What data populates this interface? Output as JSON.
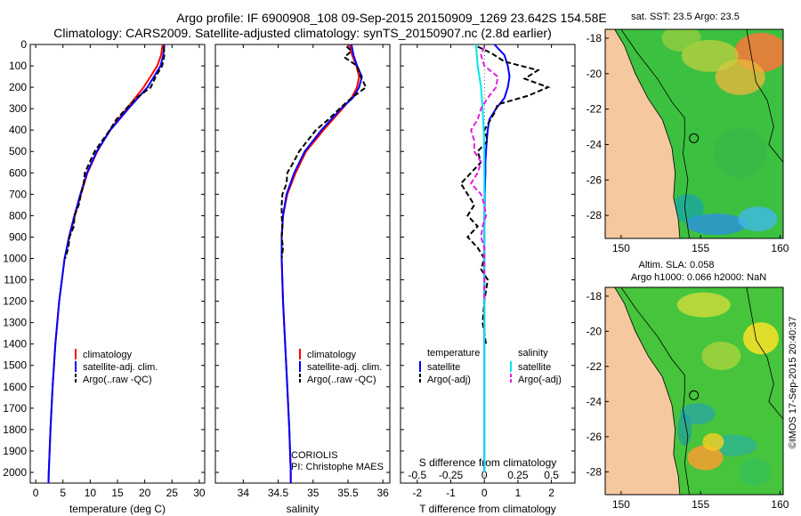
{
  "header": {
    "line1": "Argo profile: IF 6900908_108 09-Sep-2015 20150909_1269 23.642S 154.58E",
    "line2": "Climatology: CARS2009. Satellite-adjusted climatology: synTS_20150907.nc (2.8d earlier)"
  },
  "colors": {
    "climatology": "#ff0000",
    "satellite": "#0000ff",
    "argo": "#000000",
    "sat_s": "#00e5ee",
    "argo_s": "#e020e0",
    "land": "#f5c8a0"
  },
  "map_top": {
    "title": "sat. SST: 23.5 Argo: 23.5"
  },
  "map_bottom": {
    "title1": "Altim. SLA: 0.058",
    "title2": "Argo h1000: 0.066 h2000: NaN"
  },
  "footer": {
    "side_label": "©IMOS 17-Sep-2015 20:40:37"
  },
  "chart_data": [
    {
      "type": "line",
      "xlabel": "temperature (deg C)",
      "xlim": [
        -1,
        31
      ],
      "x_ticks": [
        0,
        5,
        10,
        15,
        20,
        25,
        30
      ],
      "ylim": [
        0,
        2050
      ],
      "y_ticks": [
        0,
        100,
        200,
        300,
        400,
        500,
        600,
        700,
        800,
        900,
        1000,
        1100,
        1200,
        1300,
        1400,
        1500,
        1600,
        1700,
        1800,
        1900,
        2000
      ],
      "legend": [
        "climatology",
        "satellite-adj. clim.",
        "Argo(..raw -QC)"
      ],
      "series": [
        {
          "name": "climatology",
          "depth": [
            0,
            50,
            100,
            200,
            300,
            400,
            500,
            600,
            700,
            800,
            900,
            1000,
            1200,
            1400,
            1600,
            1800,
            2000,
            2050
          ],
          "values": [
            23.3,
            23.0,
            22.3,
            19.8,
            16.7,
            13.6,
            11.3,
            9.5,
            8.3,
            7.2,
            6.2,
            5.3,
            4.3,
            3.6,
            3.1,
            2.7,
            2.4,
            2.35
          ]
        },
        {
          "name": "satellite-adj. clim.",
          "depth": [
            0,
            50,
            100,
            200,
            300,
            400,
            500,
            600,
            700,
            800,
            900,
            1000,
            1200,
            1400,
            1600,
            1800,
            2000,
            2050
          ],
          "values": [
            23.6,
            23.4,
            22.9,
            20.5,
            17.0,
            13.7,
            11.2,
            9.4,
            8.2,
            7.1,
            6.1,
            5.3,
            4.3,
            3.6,
            3.1,
            2.7,
            2.4,
            2.35
          ]
        },
        {
          "name": "Argo(..raw -QC)",
          "depth": [
            10,
            50,
            100,
            150,
            200,
            250,
            300,
            350,
            400,
            450,
            500,
            550,
            600,
            650,
            700,
            750,
            800,
            850,
            900,
            950,
            1000
          ],
          "values": [
            23.5,
            23.6,
            23.2,
            22.0,
            21.1,
            18.5,
            16.6,
            14.8,
            13.6,
            12.2,
            10.8,
            9.9,
            9.0,
            8.8,
            8.3,
            7.9,
            7.1,
            7.0,
            6.2,
            6.0,
            5.4
          ]
        }
      ]
    },
    {
      "type": "line",
      "xlabel": "salinity",
      "xlim": [
        33.6,
        36.1
      ],
      "x_ticks": [
        34,
        34.5,
        35,
        35.5,
        36
      ],
      "ylim": [
        0,
        2050
      ],
      "legend": [
        "climatology",
        "satellite-adj. clim.",
        "Argo(..raw -QC)"
      ],
      "annotation": [
        "CORIOLIS",
        "PI: Christophe MAES"
      ],
      "series": [
        {
          "name": "climatology",
          "depth": [
            0,
            50,
            100,
            150,
            200,
            250,
            300,
            400,
            500,
            600,
            700,
            800,
            900,
            1000,
            1200,
            1400,
            1600,
            1800,
            2000,
            2050
          ],
          "values": [
            35.52,
            35.56,
            35.62,
            35.66,
            35.63,
            35.55,
            35.42,
            35.15,
            34.9,
            34.75,
            34.63,
            34.57,
            34.55,
            34.55,
            34.57,
            34.6,
            34.63,
            34.66,
            34.68,
            34.68
          ]
        },
        {
          "name": "satellite-adj. clim.",
          "depth": [
            0,
            50,
            100,
            150,
            200,
            250,
            300,
            400,
            500,
            600,
            700,
            800,
            900,
            1000,
            1200,
            1400,
            1600,
            1800,
            2000,
            2050
          ],
          "values": [
            35.55,
            35.58,
            35.63,
            35.7,
            35.66,
            35.57,
            35.4,
            35.12,
            34.88,
            34.73,
            34.62,
            34.57,
            34.55,
            34.55,
            34.57,
            34.6,
            34.63,
            34.66,
            34.68,
            34.68
          ]
        },
        {
          "name": "Argo(..raw -QC)",
          "depth": [
            10,
            30,
            60,
            100,
            150,
            200,
            250,
            300,
            350,
            400,
            450,
            500,
            550,
            600,
            650,
            700,
            750,
            800,
            850,
            900,
            950,
            1000
          ],
          "values": [
            35.48,
            35.55,
            35.45,
            35.63,
            35.68,
            35.76,
            35.55,
            35.38,
            35.22,
            35.04,
            34.92,
            34.8,
            34.72,
            34.63,
            34.62,
            34.56,
            34.55,
            34.55,
            34.56,
            34.55,
            34.57,
            34.55
          ]
        }
      ]
    },
    {
      "type": "line",
      "xlabel": "T difference from climatology",
      "xlim": [
        -2.5,
        2.7
      ],
      "x_ticks": [
        -2,
        -1,
        0,
        1,
        2
      ],
      "top_label": "S difference from climatology",
      "top_ticks": [
        "-0.5",
        "-0.25",
        "0",
        "0.25",
        "0.5"
      ],
      "top_tick_positions": [
        -2,
        -1,
        0,
        1,
        2
      ],
      "ylim": [
        0,
        2050
      ],
      "legend": {
        "temperature": [
          "satellite",
          "Argo(-adj)"
        ],
        "salinity": [
          "satellite",
          "Argo(-adj)"
        ],
        "temperature_heading": "temperature",
        "salinity_heading": "salinity"
      },
      "series": [
        {
          "name": "satellite",
          "depth": [
            0,
            50,
            100,
            150,
            200,
            250,
            300,
            350,
            400,
            450,
            500,
            550,
            600,
            650,
            700,
            750,
            800,
            850,
            900,
            1000,
            1200,
            1500,
            2000
          ],
          "values": [
            0.3,
            0.6,
            0.7,
            0.75,
            0.7,
            0.6,
            0.35,
            0.15,
            0.1,
            0.07,
            0.05,
            0.03,
            0.03,
            0.02,
            0.01,
            0.01,
            0.0,
            0.0,
            0.0,
            0.0,
            0.0,
            0.0,
            0.0
          ]
        },
        {
          "name": "Argo(-adj)",
          "depth": [
            10,
            40,
            80,
            120,
            160,
            200,
            240,
            280,
            320,
            400,
            450,
            500,
            550,
            600,
            650,
            700,
            750,
            800,
            850,
            900,
            950,
            1000,
            1050,
            1100,
            1200,
            1300,
            1400
          ],
          "values": [
            -0.2,
            0.2,
            0.6,
            1.6,
            1.2,
            1.9,
            1.3,
            0.4,
            0.3,
            0.0,
            0.1,
            -0.2,
            -0.1,
            -0.4,
            -0.7,
            -0.5,
            -0.3,
            -0.5,
            -0.2,
            -0.5,
            -0.2,
            0.0,
            -0.1,
            0.1,
            0.0,
            -0.05,
            0.05
          ]
        },
        {
          "name": "satellite",
          "depth": [
            0,
            100,
            200,
            300,
            400,
            500,
            600,
            700,
            800,
            1000,
            1500,
            2000
          ],
          "values": [
            -0.25,
            -0.2,
            -0.1,
            -0.05,
            -0.02,
            0.0,
            0.0,
            0.0,
            0.0,
            0.0,
            0.0,
            0.0
          ]
        },
        {
          "name": "Argo(-adj)",
          "depth": [
            10,
            50,
            100,
            150,
            200,
            250,
            300,
            350,
            400,
            450,
            500,
            550,
            600,
            650,
            700,
            750,
            800,
            850,
            900,
            950,
            1000,
            1100,
            1200
          ],
          "values": [
            0.0,
            -0.1,
            0.0,
            0.4,
            0.35,
            0.1,
            -0.1,
            -0.2,
            -0.4,
            -0.3,
            -0.3,
            -0.1,
            -0.2,
            -0.4,
            -0.1,
            0.0,
            0.05,
            -0.05,
            -0.1,
            0.0,
            0.0,
            0.0,
            0.0
          ]
        }
      ]
    },
    {
      "type": "heatmap",
      "title": "sat. SST: 23.5 Argo: 23.5",
      "x_ticks": [
        "150",
        "155",
        "160"
      ],
      "y_ticks": [
        "-18",
        "-20",
        "-22",
        "-24",
        "-26",
        "-28"
      ],
      "xlim": [
        149,
        160.2
      ],
      "ylim": [
        -29.3,
        -17.5
      ],
      "float_position": [
        154.58,
        -23.642
      ]
    },
    {
      "type": "heatmap",
      "title": "Altim. SLA: 0.058 / Argo h1000: 0.066 h2000: NaN",
      "x_ticks": [
        "150",
        "155",
        "160"
      ],
      "y_ticks": [
        "-18",
        "-20",
        "-22",
        "-24",
        "-26",
        "-28"
      ],
      "xlim": [
        149,
        160.2
      ],
      "ylim": [
        -29.3,
        -17.5
      ],
      "float_position": [
        154.58,
        -23.642
      ]
    }
  ]
}
